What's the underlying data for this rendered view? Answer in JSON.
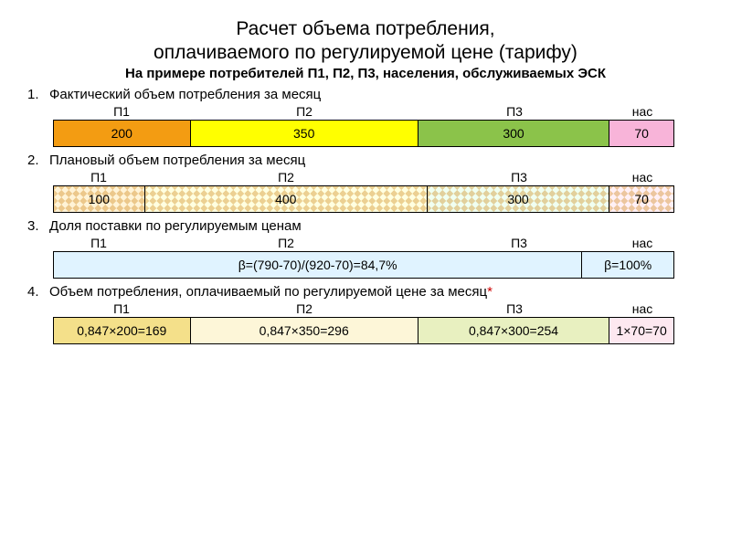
{
  "title_line1": "Расчет объема потребления,",
  "title_line2": "оплачиваемого по регулируемой цене (тарифу)",
  "subtitle": "На примере потребителей П1, П2, П3, населения, обслуживаемых ЭСК",
  "items": {
    "i1": {
      "num": "1.",
      "text": "Фактический объем потребления за месяц"
    },
    "i2": {
      "num": "2.",
      "text": "Плановый объем потребления за месяц"
    },
    "i3": {
      "num": "3.",
      "text": "Доля поставки по регулируемым ценам"
    },
    "i4": {
      "num": "4.",
      "text": "Объем потребления, оплачиваемый по регулируемой цене за месяц",
      "ast": "*"
    }
  },
  "labels": {
    "p1": "П1",
    "p2": "П2",
    "p3": "П3",
    "nas": "нас"
  },
  "bar1": {
    "widths": [
      150,
      250,
      210,
      70
    ],
    "colors": [
      "#f39c12",
      "#ffff00",
      "#8bc34a",
      "#f8b4d9"
    ],
    "vals": [
      "200",
      "350",
      "300",
      "70"
    ]
  },
  "bar2": {
    "widths": [
      100,
      310,
      200,
      70
    ],
    "base_colors": [
      "#fff3d6",
      "#ffffe0",
      "#f0fff0",
      "#fff0f5"
    ],
    "vals": [
      "100",
      "400",
      "300",
      "70"
    ]
  },
  "bar3": {
    "label_widths": [
      100,
      310,
      200,
      70
    ],
    "widths": [
      580,
      100
    ],
    "colors": [
      "#e0f3ff",
      "#e0f3ff"
    ],
    "vals": [
      "β=(790-70)/(920-70)=84,7%",
      "β=100%"
    ]
  },
  "bar4": {
    "widths": [
      150,
      250,
      210,
      70
    ],
    "colors": [
      "#f4e08a",
      "#fdf6d8",
      "#e8f0c0",
      "#fde8f0"
    ],
    "vals": [
      "0,847×200=169",
      "0,847×350=296",
      "0,847×300=254",
      "1×70=70"
    ]
  }
}
